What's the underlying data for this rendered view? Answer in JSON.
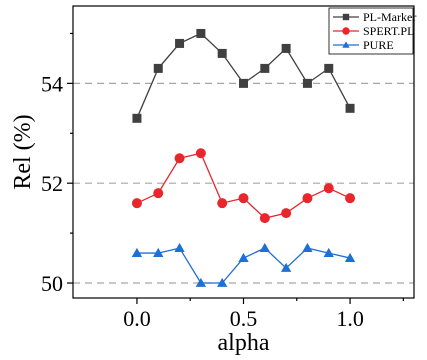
{
  "chart_data": {
    "type": "line",
    "xlabel": "alpha",
    "ylabel": "Rel (%)",
    "xlim": [
      -0.3,
      1.3
    ],
    "ylim": [
      49.7,
      55.55
    ],
    "x_ticks": [
      0.0,
      0.5,
      1.0
    ],
    "x_tick_labels": [
      "0.0",
      "0.5",
      "1.0"
    ],
    "y_ticks": [
      50,
      52,
      54
    ],
    "y_tick_labels": [
      "50",
      "52",
      "54"
    ],
    "grid": "dashed horizontal at y ticks",
    "legend_position": "top-right",
    "x": [
      0.0,
      0.1,
      0.2,
      0.3,
      0.4,
      0.5,
      0.6,
      0.7,
      0.8,
      0.9,
      1.0
    ],
    "series": [
      {
        "name": "PL-Marker",
        "color": "#404040",
        "marker": "square",
        "values": [
          53.3,
          54.3,
          54.8,
          55.0,
          54.6,
          54.0,
          54.3,
          54.7,
          54.0,
          54.3,
          53.5
        ]
      },
      {
        "name": "SPERT.PL",
        "color": "#e8262b",
        "marker": "circle",
        "values": [
          51.6,
          51.8,
          52.5,
          52.6,
          51.6,
          51.7,
          51.3,
          51.4,
          51.7,
          51.9,
          51.7
        ]
      },
      {
        "name": "PURE",
        "color": "#1f6fd8",
        "marker": "triangle",
        "values": [
          50.6,
          50.6,
          50.7,
          50.0,
          50.0,
          50.5,
          50.7,
          50.3,
          50.7,
          50.6,
          50.5
        ]
      }
    ]
  }
}
